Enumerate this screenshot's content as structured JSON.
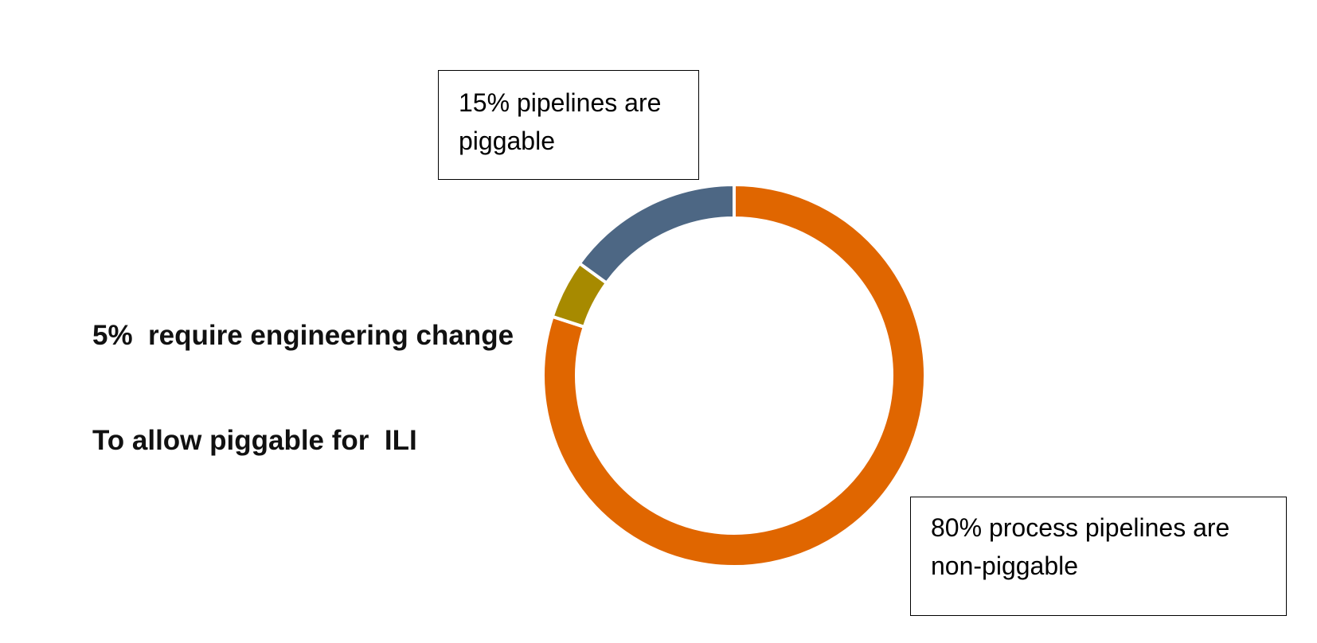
{
  "chart_data": {
    "type": "pie",
    "style": "donut",
    "title": "",
    "slices": [
      {
        "label": "80% process pipelines are non-piggable",
        "value": 80,
        "color": "#E06600"
      },
      {
        "label": "5% require engineering change To allow piggable for ILI",
        "value": 5,
        "color": "#A78A00"
      },
      {
        "label": "15% pipelines are piggable",
        "value": 15,
        "color": "#4D6784"
      }
    ],
    "start": "top, clockwise",
    "legend": "none"
  },
  "labels": {
    "piggable": [
      "15% pipelines are",
      "piggable"
    ],
    "engineering": [
      "5%  require engineering change",
      "To allow piggable for  ILI"
    ],
    "nonpiggable": [
      "80% process pipelines are",
      "non-piggable"
    ]
  }
}
